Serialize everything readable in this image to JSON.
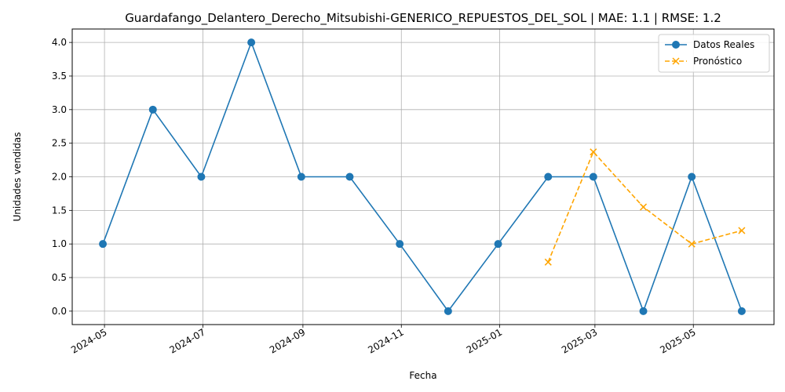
{
  "chart_data": {
    "type": "line",
    "title": "Guardafango_Delantero_Derecho_Mitsubishi-GENERICO_REPUESTOS_DEL_SOL | MAE: 1.1 | RMSE: 1.2",
    "xlabel": "Fecha",
    "ylabel": "Unidades vendidas",
    "ylim": [
      -0.2,
      4.2
    ],
    "xlim": [
      "2024-04-11",
      "2025-06-20"
    ],
    "grid": true,
    "legend_position": "top-right",
    "x_ticks": [
      "2024-05",
      "2024-07",
      "2024-09",
      "2024-11",
      "2025-01",
      "2025-03",
      "2025-05"
    ],
    "y_ticks": [
      "0.0",
      "0.5",
      "1.0",
      "1.5",
      "2.0",
      "2.5",
      "3.0",
      "3.5",
      "4.0"
    ],
    "series": [
      {
        "name": "Datos Reales",
        "color": "#1f77b4",
        "marker": "circle",
        "line_style": "solid",
        "x": [
          "2024-04-30",
          "2024-05-31",
          "2024-06-30",
          "2024-07-31",
          "2024-08-31",
          "2024-09-30",
          "2024-10-31",
          "2024-11-30",
          "2024-12-31",
          "2025-01-31",
          "2025-02-28",
          "2025-03-31",
          "2025-04-30",
          "2025-05-31"
        ],
        "values": [
          1,
          3,
          2,
          4,
          2,
          2,
          1,
          0,
          1,
          2,
          2,
          0,
          2,
          0
        ]
      },
      {
        "name": "Pronóstico",
        "color": "#ffa500",
        "marker": "x",
        "line_style": "dashed",
        "x": [
          "2025-01-31",
          "2025-02-28",
          "2025-03-31",
          "2025-04-30",
          "2025-05-31"
        ],
        "values": [
          0.73,
          2.37,
          1.55,
          1.0,
          1.2
        ]
      }
    ]
  }
}
